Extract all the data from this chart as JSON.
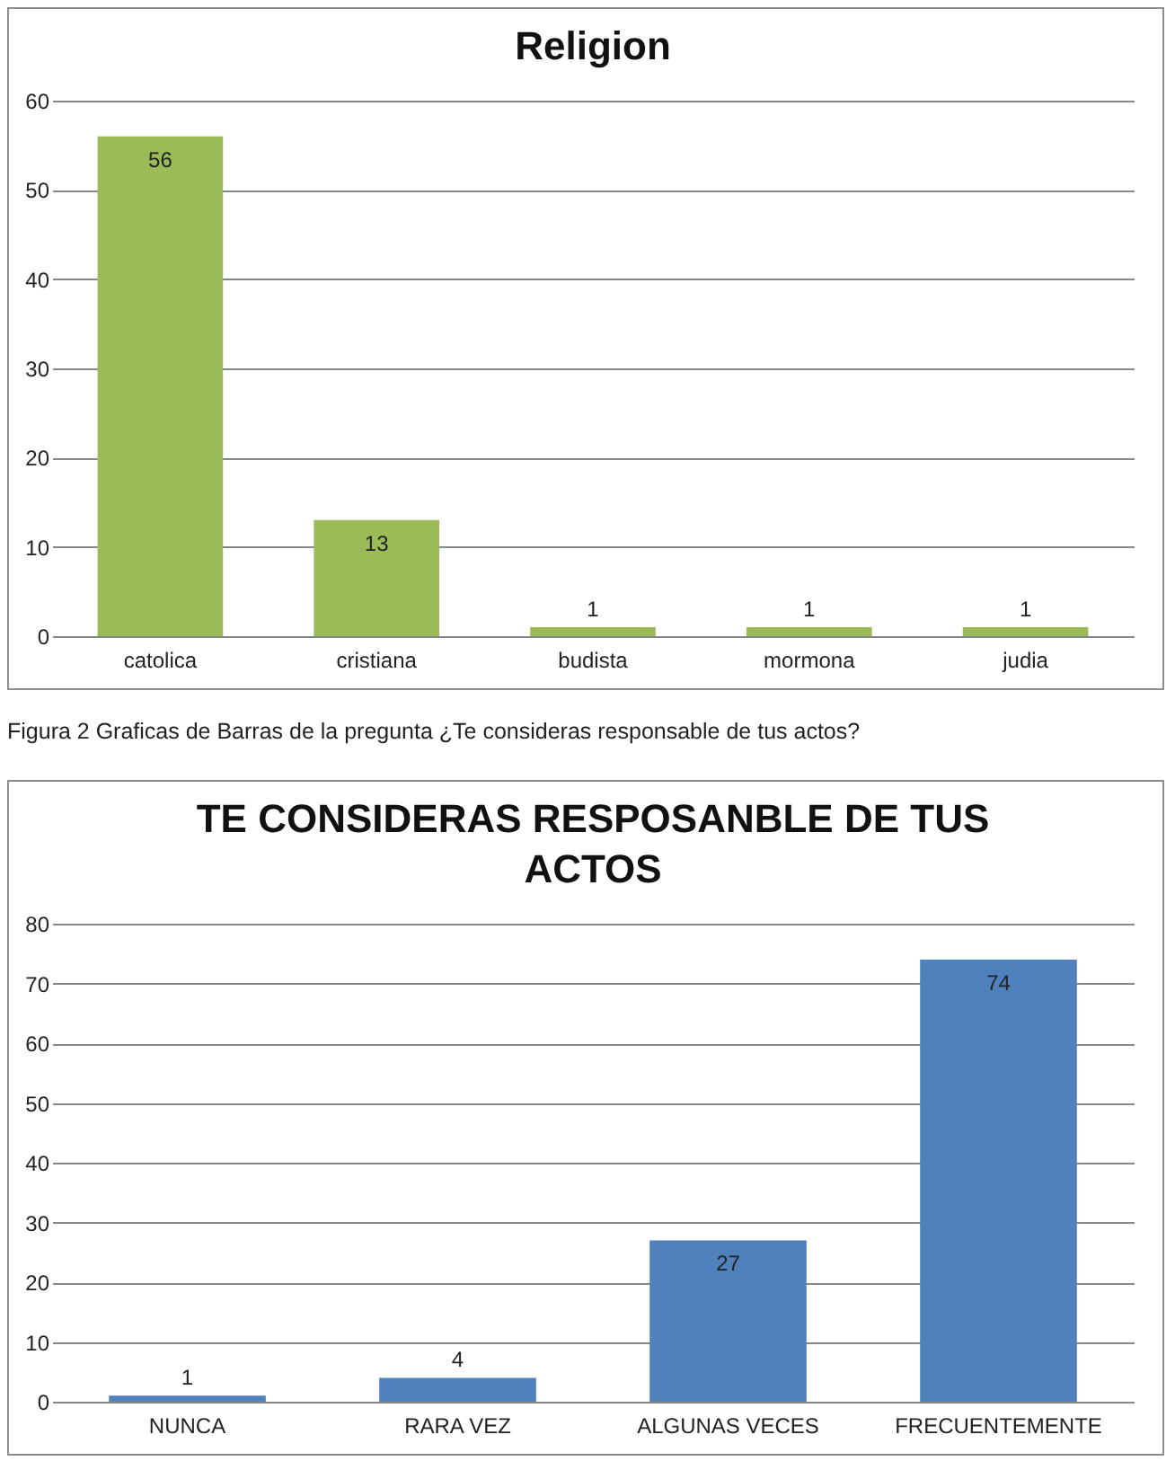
{
  "chart_data": [
    {
      "type": "bar",
      "title": "Religion",
      "categories": [
        "catolica",
        "cristiana",
        "budista",
        "mormona",
        "judia"
      ],
      "values": [
        56,
        13,
        1,
        1,
        1
      ],
      "color": "#9bbb59",
      "ylim": [
        0,
        60
      ],
      "yticks": [
        0,
        10,
        20,
        30,
        40,
        50,
        60
      ],
      "grid": "y",
      "data_labels": true
    },
    {
      "type": "bar",
      "title": "TE CONSIDERAS RESPOSANBLE DE TUS ACTOS",
      "categories": [
        "NUNCA",
        "RARA VEZ",
        "ALGUNAS VECES",
        "FRECUENTEMENTE"
      ],
      "values": [
        1,
        4,
        27,
        74
      ],
      "color": "#4f81bd",
      "ylim": [
        0,
        80
      ],
      "yticks": [
        0,
        10,
        20,
        30,
        40,
        50,
        60,
        70,
        80
      ],
      "grid": "y",
      "data_labels": true,
      "annotations": [
        "Figura  2 Graficas de Barras de la pregunta ¿Te consideras responsable de tus actos?"
      ]
    }
  ]
}
